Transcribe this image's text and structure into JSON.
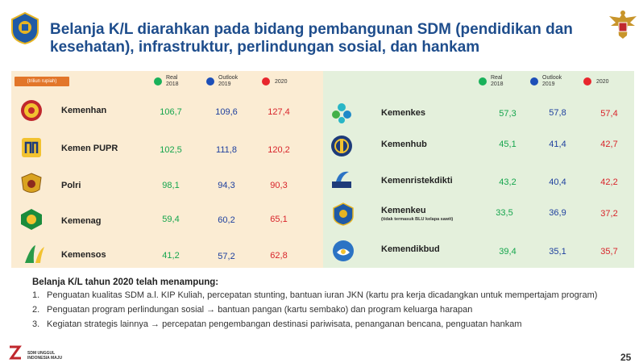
{
  "title": "Belanja K/L diarahkan pada bidang pembangunan SDM (pendidikan dan kesehatan), infrastruktur, perlindungan sosial, dan hankam",
  "unit_label": "(triliun rupiah)",
  "legend": {
    "green_line1": "Real",
    "green_line2": "2018",
    "blue_line1": "Outlook",
    "blue_line2": "2019",
    "red": "2020"
  },
  "left_rows": [
    {
      "name": "Kemenhan",
      "real2018": "106,7",
      "outlook2019": "109,6",
      "y2020": "127,4",
      "icon": "kemenhan-emblem-icon"
    },
    {
      "name": "Kemen PUPR",
      "real2018": "102,5",
      "outlook2019": "111,8",
      "y2020": "120,2",
      "icon": "pupr-logo-icon"
    },
    {
      "name": "Polri",
      "real2018": "98,1",
      "outlook2019": "94,3",
      "y2020": "90,3",
      "icon": "polri-emblem-icon"
    },
    {
      "name": "Kemenag",
      "real2018": "59,4",
      "outlook2019": "60,2",
      "y2020": "65,1",
      "icon": "kemenag-emblem-icon"
    },
    {
      "name": "Kemensos",
      "real2018": "41,2",
      "outlook2019": "57,2",
      "y2020": "62,8",
      "icon": "kemensos-logo-icon"
    }
  ],
  "right_rows": [
    {
      "name": "Kemenkes",
      "sub": "",
      "real2018": "57,3",
      "outlook2019": "57,8",
      "y2020": "57,4",
      "icon": "kemenkes-logo-icon"
    },
    {
      "name": "Kemenhub",
      "sub": "",
      "real2018": "45,1",
      "outlook2019": "41,4",
      "y2020": "42,7",
      "icon": "kemenhub-emblem-icon"
    },
    {
      "name": "Kemenristekdikti",
      "sub": "",
      "real2018": "43,2",
      "outlook2019": "40,4",
      "y2020": "42,2",
      "icon": "kemenristekdikti-logo-icon"
    },
    {
      "name": "Kemenkeu",
      "sub": "(tidak termasuk BLU kelapa sawit)",
      "real2018": "33,5",
      "outlook2019": "36,9",
      "y2020": "37,2",
      "icon": "kemenkeu-emblem-icon"
    },
    {
      "name": "Kemendikbud",
      "sub": "",
      "real2018": "39,4",
      "outlook2019": "35,1",
      "y2020": "35,7",
      "icon": "kemendikbud-logo-icon"
    }
  ],
  "notes": {
    "heading": "Belanja K/L tahun 2020 telah menampung:",
    "items": [
      {
        "num": "1.",
        "text": "Penguatan kualitas SDM a.l. KIP Kuliah, percepatan stunting, bantuan iuran JKN (kartu pra kerja dicadangkan untuk mempertajam program)"
      },
      {
        "num": "2.",
        "text": "Penguatan program perlindungan sosial → bantuan pangan (kartu sembako) dan program keluarga harapan"
      },
      {
        "num": "3.",
        "text": "Kegiatan strategis lainnya → percepatan pengembangan destinasi pariwisata, penanganan bencana, penguatan hankam"
      }
    ]
  },
  "footer": {
    "line1": "SDM UNGGUL",
    "line2": "INDONESIA MAJU",
    "page": "25"
  },
  "colors": {
    "title": "#1e4d8c",
    "green": "#14a54c",
    "blue": "#1d3f9e",
    "red": "#d8232a",
    "panel_left": "#fbecd3",
    "panel_right": "#e4f0dc"
  }
}
